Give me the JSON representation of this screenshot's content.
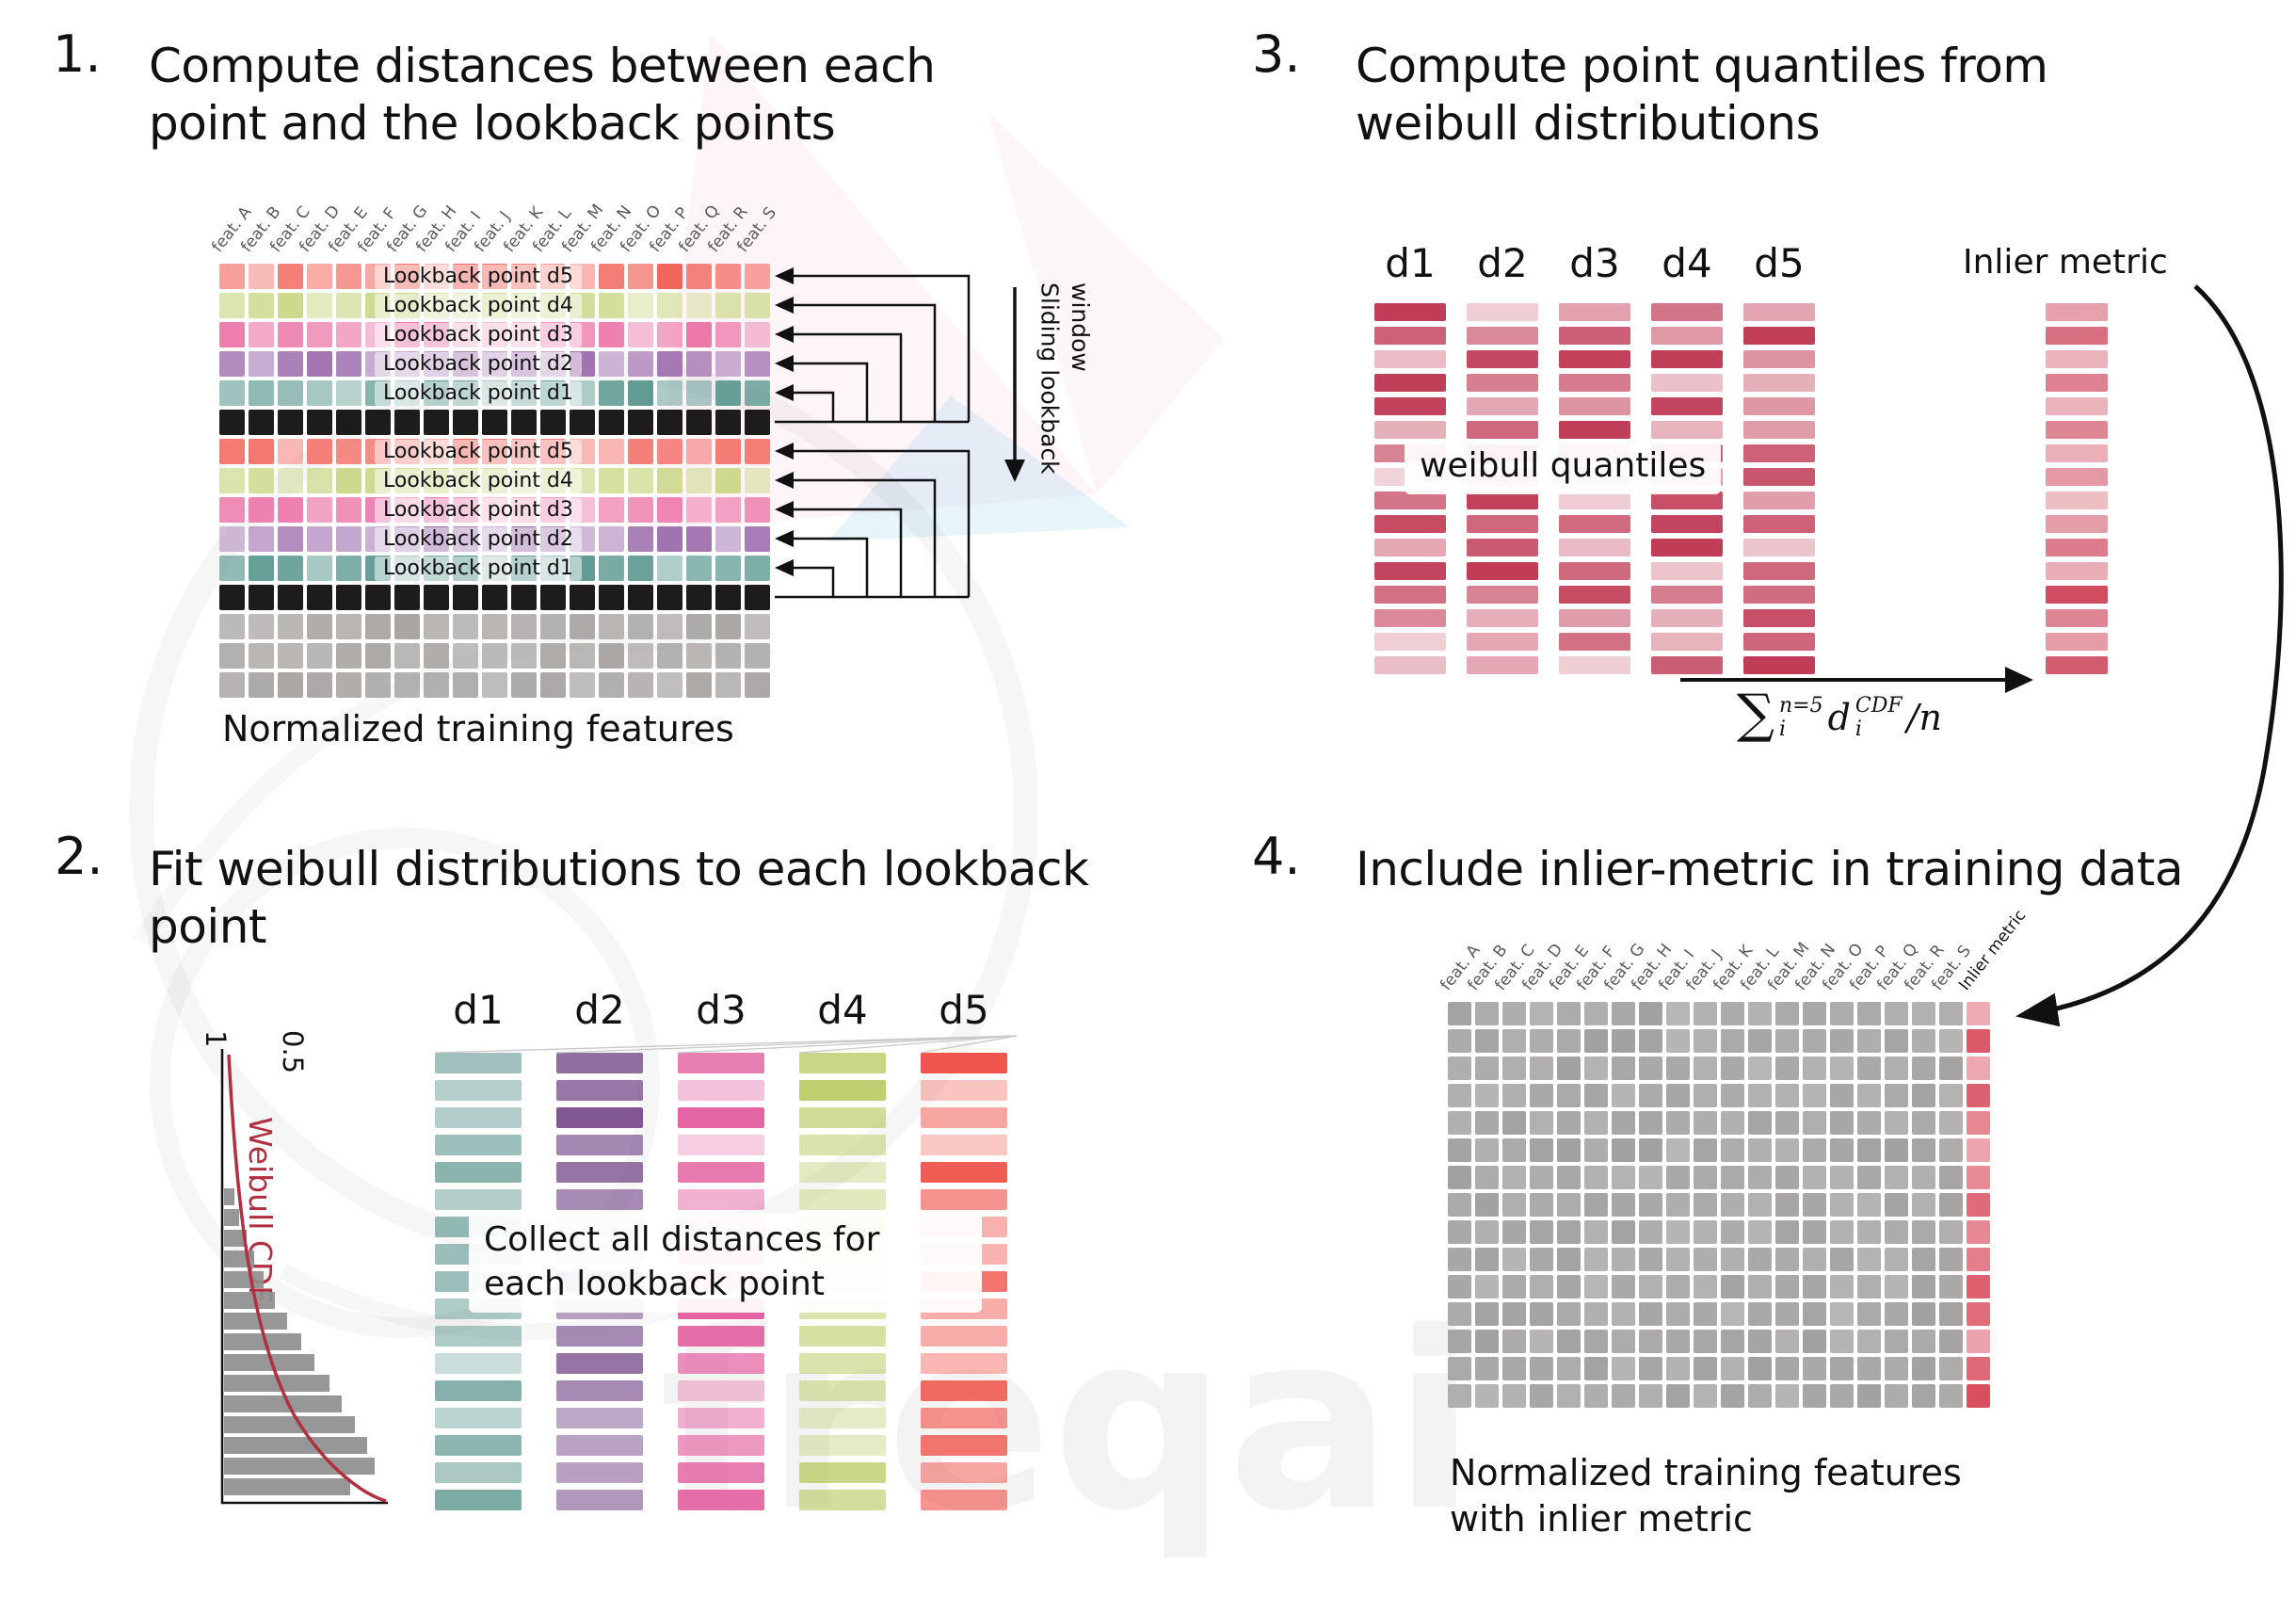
{
  "watermark": {
    "text": "freqai"
  },
  "panel1": {
    "number": "1.",
    "title": "Compute distances between each point and the lookback points",
    "features": [
      "feat. A",
      "feat. B",
      "feat. C",
      "feat. D",
      "feat. E",
      "feat. F",
      "feat. G",
      "feat. H",
      "feat. I",
      "feat. J",
      "feat. K",
      "feat. L",
      "feat. M",
      "feat. N",
      "feat. O",
      "feat. P",
      "feat. Q",
      "feat. R",
      "feat. S"
    ],
    "rows": [
      {
        "type": "d5",
        "label": "Lookback point d5"
      },
      {
        "type": "d4",
        "label": "Lookback point d4"
      },
      {
        "type": "d3",
        "label": "Lookback point d3"
      },
      {
        "type": "d2",
        "label": "Lookback point d2"
      },
      {
        "type": "d1",
        "label": "Lookback point d1"
      },
      {
        "type": "current"
      },
      {
        "type": "d5",
        "label": "Lookback point d5"
      },
      {
        "type": "d4",
        "label": "Lookback point d4"
      },
      {
        "type": "d3",
        "label": "Lookback point d3"
      },
      {
        "type": "d2",
        "label": "Lookback point d2"
      },
      {
        "type": "d1",
        "label": "Lookback point d1"
      },
      {
        "type": "current"
      },
      {
        "type": "plain"
      },
      {
        "type": "plain"
      },
      {
        "type": "plain"
      }
    ],
    "row_colors": {
      "d5": "#f2645c",
      "d4": "#ccd98c",
      "d3": "#ec74a7",
      "d2": "#9c6bad",
      "d1": "#5a988f",
      "current": "#1d1c1a",
      "plain": "#a9a6a4"
    },
    "sliding_window_label": "Sliding lookback window",
    "caption": "Normalized training features"
  },
  "panel2": {
    "number": "2.",
    "title": "Fit weibull distributions to each lookback point",
    "plot": {
      "ylabel": "Weibull CDF",
      "ticks": [
        "1",
        "0.5"
      ],
      "curve_color": "#b03040",
      "bar_color": "#8e8e8e",
      "hist": [
        0.07,
        0.1,
        0.15,
        0.2,
        0.26,
        0.34,
        0.42,
        0.51,
        0.6,
        0.7,
        0.78,
        0.87,
        0.95,
        1.0,
        0.84
      ]
    },
    "columns": [
      {
        "label": "d1",
        "color": "#4f8d85"
      },
      {
        "label": "d2",
        "color": "#7c5290"
      },
      {
        "label": "d3",
        "color": "#e1589b"
      },
      {
        "label": "d4",
        "color": "#b6c95e"
      },
      {
        "label": "d5",
        "color": "#f05148"
      }
    ],
    "overlay": "Collect all distances for each lookback point"
  },
  "panel3": {
    "number": "3.",
    "title": "Compute point quantiles from weibull distributions",
    "columns": [
      "d1",
      "d2",
      "d3",
      "d4",
      "d5"
    ],
    "bar_color": "#c03a55",
    "inlier_bar_color": "#cf4a5f",
    "overlay": "weibull quantiles",
    "inlier_label": "Inlier metric",
    "formula": {
      "sum_symbol": "∑",
      "sum_upper": "n=5",
      "sum_lower": "i",
      "term_base": "d",
      "term_upper": "CDF",
      "term_lower": "i",
      "tail": "/n"
    }
  },
  "panel4": {
    "number": "4.",
    "title": "Include inlier-metric in training data",
    "features": [
      "feat. A",
      "feat. B",
      "feat. C",
      "feat. D",
      "feat. E",
      "feat. F",
      "feat. G",
      "feat. H",
      "feat. I",
      "feat. J",
      "feat. K",
      "feat. L",
      "feat. M",
      "feat. N",
      "feat. O",
      "feat. P",
      "feat. Q",
      "feat. R",
      "feat. S"
    ],
    "inlier_header": "Inlier metric",
    "cell_color": "#a3a19f",
    "inlier_color": "#d94f5f",
    "caption_lines": [
      "Normalized training features",
      "with inlier metric"
    ]
  }
}
